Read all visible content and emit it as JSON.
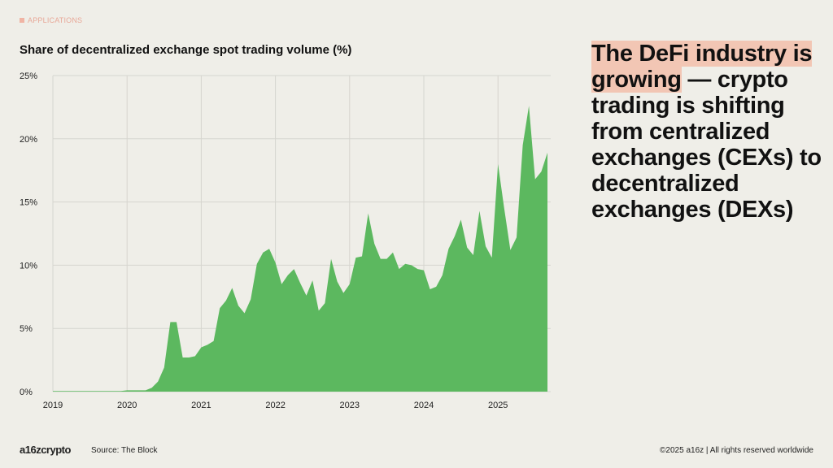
{
  "section_tag": "APPLICATIONS",
  "headline": {
    "highlight": "The DeFi industry is growing",
    "rest": " — crypto trading is shifting from centralized exchanges (CEXs) to decentralized exchanges (DEXs)"
  },
  "footer": {
    "logo": "a16zcrypto",
    "source": "Source: The Block",
    "copyright": "©2025 a16z | All rights reserved worldwide"
  },
  "colors": {
    "fill": "#5cb85f",
    "highlight": "#f2c6b4",
    "tag": "#e8a898",
    "grid": "#d6d5cf"
  },
  "chart_data": {
    "type": "area",
    "title": "Share of decentralized exchange spot trading volume (%)",
    "xlabel": "",
    "ylabel": "",
    "x_start": "2019-01",
    "x_frequency": "monthly",
    "x_ticks": [
      "2019",
      "2020",
      "2021",
      "2022",
      "2023",
      "2024",
      "2025"
    ],
    "y_ticks": [
      "0%",
      "5%",
      "10%",
      "15%",
      "20%",
      "25%"
    ],
    "ylim": [
      0,
      25
    ],
    "grid": true,
    "values": [
      0.05,
      0.05,
      0.05,
      0.05,
      0.05,
      0.05,
      0.05,
      0.05,
      0.05,
      0.05,
      0.05,
      0.05,
      0.1,
      0.1,
      0.1,
      0.1,
      0.3,
      0.8,
      1.9,
      5.5,
      5.5,
      2.7,
      2.7,
      2.8,
      3.5,
      3.7,
      4.0,
      6.6,
      7.2,
      8.2,
      6.8,
      6.2,
      7.3,
      10.1,
      11.0,
      11.3,
      10.2,
      8.5,
      9.2,
      9.7,
      8.6,
      7.6,
      8.8,
      6.4,
      7.0,
      10.5,
      8.7,
      7.8,
      8.5,
      10.6,
      10.7,
      14.1,
      11.7,
      10.5,
      10.5,
      11.0,
      9.7,
      10.1,
      10.0,
      9.7,
      9.6,
      8.1,
      8.3,
      9.2,
      11.3,
      12.3,
      13.6,
      11.4,
      10.8,
      14.3,
      11.5,
      10.6,
      18.0,
      14.5,
      11.2,
      12.2,
      19.5,
      22.6,
      16.8,
      17.4,
      18.9
    ]
  }
}
